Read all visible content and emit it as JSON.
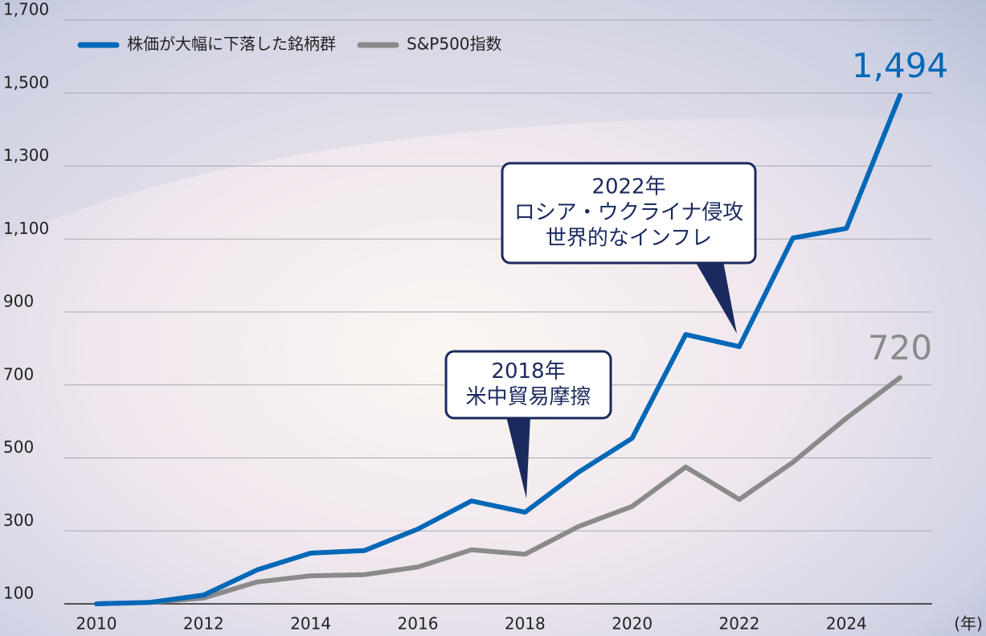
{
  "chart_data": {
    "type": "line",
    "x": [
      2010,
      2011,
      2012,
      2013,
      2014,
      2015,
      2016,
      2017,
      2018,
      2019,
      2020,
      2021,
      2022,
      2023,
      2024,
      2025
    ],
    "series": [
      {
        "name": "株価が大幅に下落した銘柄群",
        "color": "#0068b7",
        "values": [
          100,
          104,
          124,
          193,
          239,
          246,
          305,
          382,
          351,
          461,
          554,
          838,
          805,
          1103,
          1129,
          1494
        ],
        "value_labels": [
          null,
          null,
          null,
          null,
          null,
          null,
          null,
          null,
          null,
          null,
          null,
          null,
          null,
          null,
          null,
          "1,494"
        ]
      },
      {
        "name": "S&P500指数",
        "color": "#8a8a8a",
        "values": [
          100,
          104,
          116,
          160,
          177,
          180,
          201,
          248,
          236,
          312,
          367,
          475,
          386,
          488,
          609,
          720
        ],
        "value_labels": [
          null,
          null,
          null,
          null,
          null,
          null,
          null,
          null,
          null,
          null,
          null,
          null,
          null,
          null,
          null,
          "720"
        ]
      }
    ],
    "xlim": [
      2009.4,
      2025.6
    ],
    "xticks": [
      2010,
      2012,
      2014,
      2016,
      2018,
      2020,
      2022,
      2024
    ],
    "x_label": "(年)",
    "ylim": [
      100,
      1700
    ],
    "yticks": [
      100,
      300,
      500,
      700,
      900,
      {
        "value": 1100,
        "label": "1,100"
      },
      {
        "value": 1300,
        "label": "1,300"
      },
      {
        "value": 1500,
        "label": "1,500"
      },
      {
        "value": 1700,
        "label": "1,700"
      }
    ],
    "grid": true,
    "legend": "top-left",
    "annotations": [
      {
        "lines": [
          "2018年",
          "米中貿易摩擦"
        ]
      },
      {
        "lines": [
          "2022年",
          "ロシア・ウクライナ侵攻",
          "世界的なインフレ"
        ]
      }
    ]
  }
}
